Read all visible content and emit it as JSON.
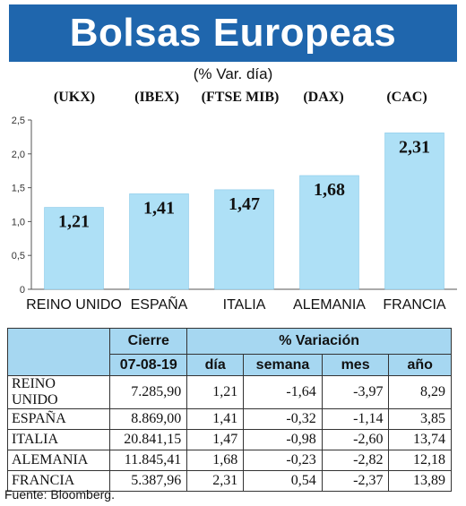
{
  "title": "Bolsas Europeas",
  "subtitle": "(% Var. día)",
  "source": "Fuente: Bloomberg.",
  "colors": {
    "banner": "#1f66ad",
    "bar": "#aee0f6",
    "header": "#a6d7f1"
  },
  "chart_data": {
    "type": "bar",
    "categories": [
      "REINO UNIDO",
      "ESPAÑA",
      "ITALIA",
      "ALEMANIA",
      "FRANCIA"
    ],
    "codes": [
      "(UKX)",
      "(IBEX)",
      "(FTSE MIB)",
      "(DAX)",
      "(CAC)"
    ],
    "values": [
      1.21,
      1.41,
      1.47,
      1.68,
      2.31
    ],
    "labels": [
      "1,21",
      "1,41",
      "1,47",
      "1,68",
      "2,31"
    ],
    "yticks": [
      "0",
      "0,5",
      "1,0",
      "1,5",
      "2,0",
      "2,5"
    ],
    "ylim": [
      0,
      2.5
    ]
  },
  "table": {
    "group_headers": [
      "Cierre",
      "% Variación"
    ],
    "columns": [
      "07-08-19",
      "día",
      "semana",
      "mes",
      "año"
    ],
    "rows": [
      {
        "country": "REINO UNIDO",
        "cierre": "7.285,90",
        "dia": "1,21",
        "semana": "-1,64",
        "mes": "-3,97",
        "ano": "8,29"
      },
      {
        "country": "ESPAÑA",
        "cierre": "8.869,00",
        "dia": "1,41",
        "semana": "-0,32",
        "mes": "-1,14",
        "ano": "3,85"
      },
      {
        "country": "ITALIA",
        "cierre": "20.841,15",
        "dia": "1,47",
        "semana": "-0,98",
        "mes": "-2,60",
        "ano": "13,74"
      },
      {
        "country": "ALEMANIA",
        "cierre": "11.845,41",
        "dia": "1,68",
        "semana": "-0,23",
        "mes": "-2,82",
        "ano": "12,18"
      },
      {
        "country": "FRANCIA",
        "cierre": "5.387,96",
        "dia": "2,31",
        "semana": "0,54",
        "mes": "-2,37",
        "ano": "13,89"
      }
    ]
  }
}
